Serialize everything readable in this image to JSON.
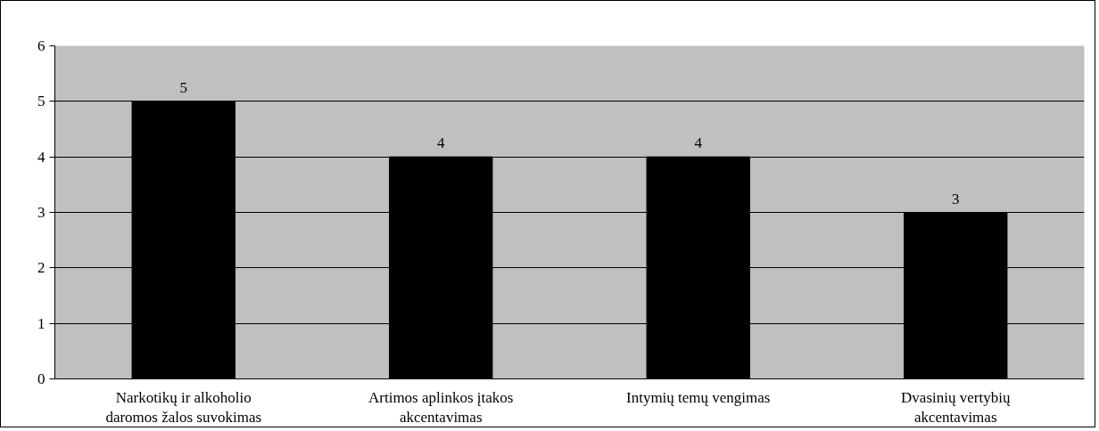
{
  "chart_data": {
    "type": "bar",
    "categories": [
      "Narkotikų ir alkoholio daromos žalos suvokimas",
      "Artimos aplinkos įtakos akcentavimas",
      "Intymių temų vengimas",
      "Dvasinių vertybių akcentavimas"
    ],
    "values": [
      5,
      4,
      4,
      3
    ],
    "color": "#000000",
    "ylim": [
      0,
      6
    ],
    "yticks": [
      0,
      1,
      2,
      3,
      4,
      5,
      6
    ],
    "grid": "y",
    "data_labels": true
  }
}
